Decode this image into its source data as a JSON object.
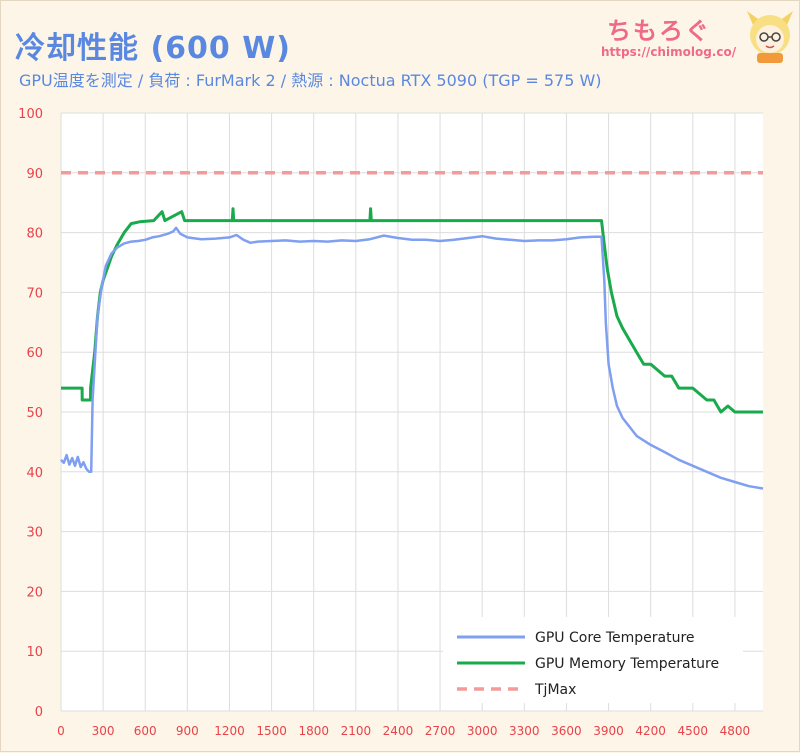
{
  "header": {
    "title": "冷却性能 (600 W)",
    "subtitle": "GPU温度を測定 / 負荷 : FurMark 2 / 熱源 : Noctua RTX 5090 (TGP = 575 W)"
  },
  "brand": {
    "name": "ちもろぐ",
    "url": "https://chimolog.co/"
  },
  "colors": {
    "core": "#7f9ff0",
    "memory": "#19aa4c",
    "tjmax": "#f39a9a",
    "tick": "#e8424a",
    "grid": "#dddddd",
    "plot_bg": "#ffffff"
  },
  "chart_data": {
    "type": "line",
    "title": "冷却性能 (600 W)",
    "subtitle": "GPU温度を測定 / 負荷 : FurMark 2 / 熱源 : Noctua RTX 5090 (TGP = 575 W)",
    "xlabel": "",
    "ylabel": "",
    "xlim": [
      0,
      5000
    ],
    "ylim": [
      0,
      100
    ],
    "grid": true,
    "legend_position": "bottom-right",
    "x_ticks": [
      0,
      300,
      600,
      900,
      1200,
      1500,
      1800,
      2100,
      2400,
      2700,
      3000,
      3300,
      3600,
      3900,
      4200,
      4500,
      4800
    ],
    "y_ticks": [
      0,
      10,
      20,
      30,
      40,
      50,
      60,
      70,
      80,
      90,
      100
    ],
    "series": [
      {
        "name": "GPU Core Temperature",
        "color": "#7f9ff0",
        "x": [
          0,
          20,
          40,
          60,
          80,
          100,
          120,
          140,
          160,
          180,
          200,
          215,
          225,
          240,
          260,
          290,
          320,
          360,
          400,
          450,
          500,
          550,
          600,
          650,
          700,
          760,
          800,
          820,
          850,
          900,
          1000,
          1100,
          1200,
          1250,
          1300,
          1350,
          1400,
          1500,
          1600,
          1700,
          1800,
          1900,
          2000,
          2100,
          2200,
          2300,
          2400,
          2500,
          2600,
          2700,
          2800,
          2900,
          3000,
          3100,
          3200,
          3300,
          3400,
          3500,
          3600,
          3700,
          3800,
          3850,
          3870,
          3880,
          3900,
          3930,
          3960,
          4000,
          4050,
          4100,
          4200,
          4300,
          4400,
          4500,
          4600,
          4700,
          4800,
          4900,
          5000
        ],
        "values": [
          42,
          41.5,
          42.8,
          41.2,
          42.3,
          41,
          42.5,
          40.8,
          41.6,
          40.5,
          40,
          40,
          52,
          58,
          66,
          71,
          74.5,
          76.5,
          77.5,
          78.2,
          78.5,
          78.6,
          78.8,
          79.2,
          79.4,
          79.8,
          80.2,
          80.8,
          79.8,
          79.2,
          78.9,
          79,
          79.2,
          79.6,
          78.8,
          78.3,
          78.5,
          78.6,
          78.7,
          78.5,
          78.6,
          78.5,
          78.7,
          78.6,
          78.9,
          79.5,
          79.1,
          78.8,
          78.8,
          78.6,
          78.8,
          79.1,
          79.4,
          79,
          78.8,
          78.6,
          78.7,
          78.7,
          78.9,
          79.2,
          79.3,
          79.3,
          72,
          65,
          58,
          54,
          51,
          49,
          47.5,
          46,
          44.5,
          43.3,
          42,
          41,
          40,
          39,
          38.3,
          37.6,
          37.2
        ]
      },
      {
        "name": "GPU Memory Temperature",
        "color": "#19aa4c",
        "x": [
          0,
          150,
          151,
          210,
          211,
          240,
          260,
          280,
          300,
          330,
          360,
          400,
          450,
          500,
          560,
          660,
          720,
          740,
          860,
          880,
          1220,
          1225,
          1230,
          2200,
          2205,
          2210,
          3850,
          3870,
          3890,
          3920,
          3960,
          4000,
          4050,
          4100,
          4150,
          4200,
          4300,
          4350,
          4400,
          4500,
          4600,
          4650,
          4700,
          4750,
          4800,
          5000
        ],
        "values": [
          54,
          54,
          52,
          52,
          54,
          60,
          66,
          70,
          72,
          74,
          76,
          78,
          80,
          81.5,
          81.8,
          82,
          83.5,
          82,
          83.5,
          82,
          82,
          84,
          82,
          82,
          84,
          82,
          82,
          78,
          74,
          70,
          66,
          64,
          62,
          60,
          58,
          58,
          56,
          56,
          54,
          54,
          52,
          52,
          50,
          51,
          50,
          50
        ]
      },
      {
        "name": "TjMax",
        "color": "#f39a9a",
        "x": [
          0,
          5000
        ],
        "values": [
          90,
          90
        ]
      }
    ]
  }
}
